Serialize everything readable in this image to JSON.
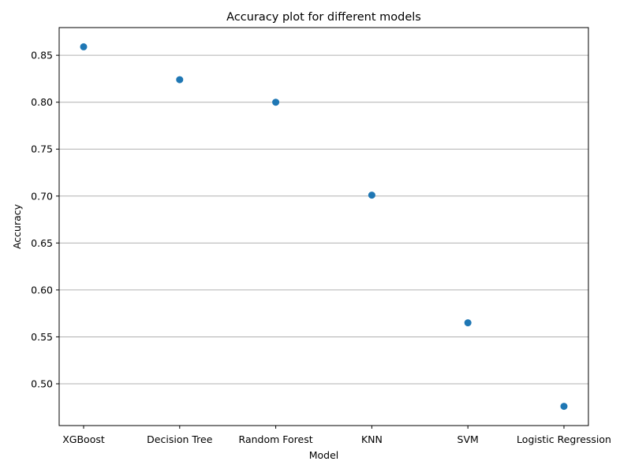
{
  "chart_data": {
    "type": "scatter",
    "title": "Accuracy plot for different models",
    "xlabel": "Model",
    "ylabel": "Accuracy",
    "categories": [
      "XGBoost",
      "Decision Tree",
      "Random Forest",
      "KNN",
      "SVM",
      "Logistic Regression"
    ],
    "values": [
      0.859,
      0.824,
      0.8,
      0.701,
      0.565,
      0.476
    ],
    "ylim": [
      0.4555,
      0.8795
    ],
    "yticks": [
      0.5,
      0.55,
      0.6,
      0.65,
      0.7,
      0.75,
      0.8,
      0.85
    ],
    "ytick_labels": [
      "0.50",
      "0.55",
      "0.60",
      "0.65",
      "0.70",
      "0.75",
      "0.80",
      "0.85"
    ],
    "grid": "y-axis",
    "marker_color": "#1f77b4",
    "grid_color": "#b0b0b0"
  }
}
